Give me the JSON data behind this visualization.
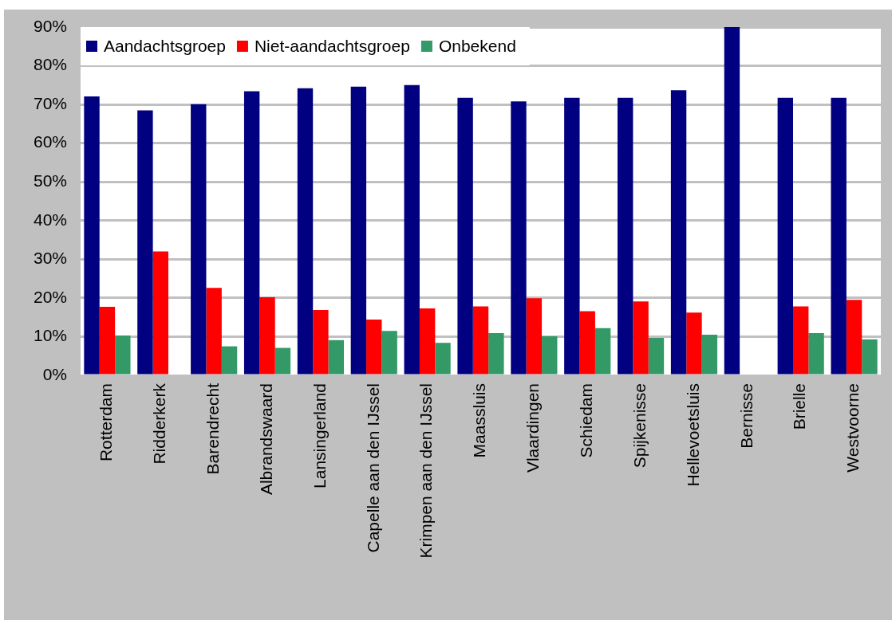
{
  "chart_data": {
    "type": "bar",
    "categories": [
      "Rotterdam",
      "Ridderkerk",
      "Barendrecht",
      "Albrandswaard",
      "Lansingerland",
      "Capelle aan den IJssel",
      "Krimpen aan den IJssel",
      "Maassluis",
      "Vlaardingen",
      "Schiedam",
      "Spijkenisse",
      "Hellevoetsluis",
      "Bernisse",
      "Brielle",
      "Westvoorne"
    ],
    "series": [
      {
        "name": "Aandachtsgroep",
        "color": "#000080",
        "values": [
          72.1,
          68.5,
          70.1,
          73.4,
          74.2,
          74.6,
          75.0,
          71.7,
          70.8,
          71.7,
          71.7,
          73.7,
          90,
          71.7,
          71.7
        ]
      },
      {
        "name": "Niet-aandachtsgroep",
        "color": "#ff0000",
        "values": [
          17.7,
          32.0,
          22.6,
          20.2,
          16.9,
          14.4,
          17.3,
          17.8,
          19.9,
          16.6,
          19.1,
          16.2,
          null,
          17.8,
          19.5
        ]
      },
      {
        "name": "Onbekend",
        "color": "#339966",
        "values": [
          10.3,
          null,
          7.5,
          7.1,
          9.1,
          11.5,
          8.4,
          10.9,
          10.1,
          12.2,
          9.7,
          10.5,
          null,
          10.9,
          9.3
        ]
      }
    ],
    "ylim": [
      0,
      90
    ],
    "yticks": [
      {
        "value": 0,
        "label": "0%"
      },
      {
        "value": 10,
        "label": "10%"
      },
      {
        "value": 20,
        "label": "20%"
      },
      {
        "value": 30,
        "label": "30%"
      },
      {
        "value": 40,
        "label": "40%"
      },
      {
        "value": 50,
        "label": "50%"
      },
      {
        "value": 60,
        "label": "60%"
      },
      {
        "value": 70,
        "label": "70%"
      },
      {
        "value": 80,
        "label": "80%"
      },
      {
        "value": 90,
        "label": "90%"
      }
    ],
    "grid": "y",
    "legend": "top left"
  }
}
